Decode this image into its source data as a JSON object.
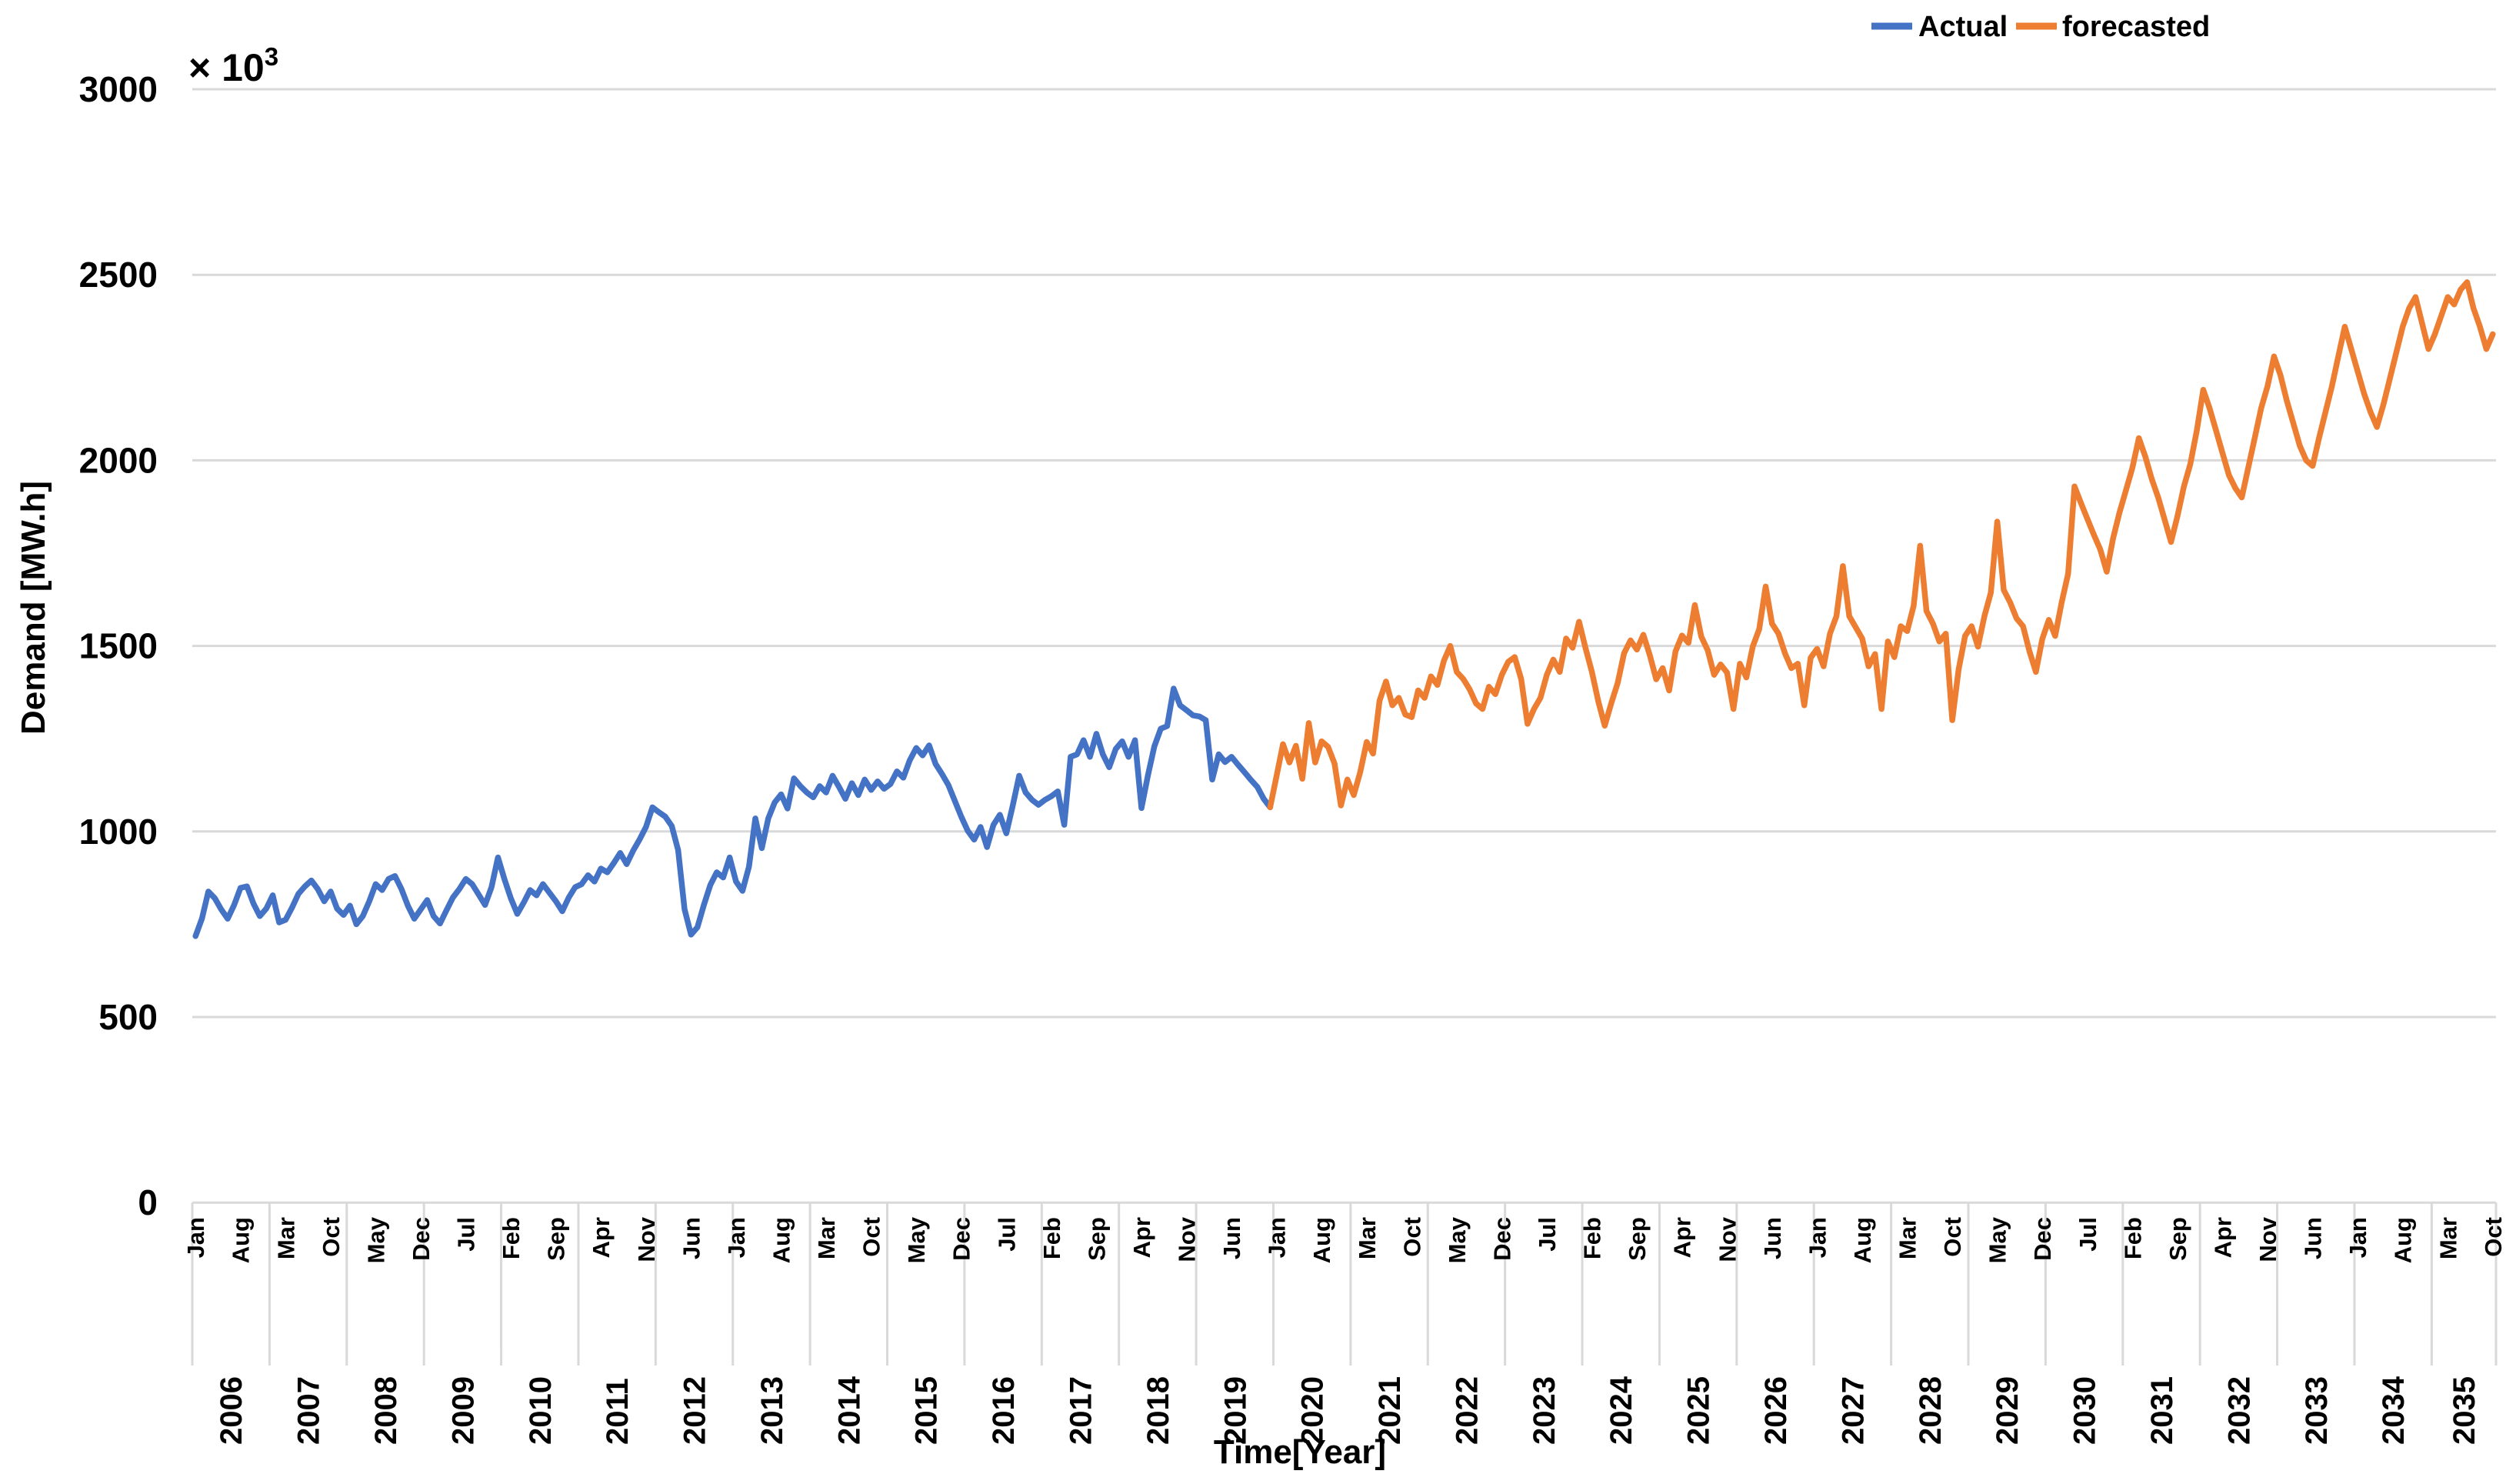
{
  "chart_data": {
    "type": "line",
    "title": "",
    "xlabel": "Time[Year]",
    "ylabel": "Demand [MW.h]",
    "y_multiplier_base": "× 10",
    "y_multiplier_exp": "3",
    "ylim": [
      0,
      3000
    ],
    "yticks": [
      0,
      500,
      1000,
      1500,
      2000,
      2500,
      3000
    ],
    "grid_on": true,
    "grid_color": "#D9D9D9",
    "axis_line_color": "#D9D9D9",
    "x_tick_interval_months": 7,
    "x_tick_labels": [
      "Jan",
      "Aug",
      "Mar",
      "Oct",
      "May",
      "Dec",
      "Jul",
      "Feb",
      "Sep",
      "Apr",
      "Nov",
      "Jun",
      "Jan",
      "Aug",
      "Mar",
      "Oct",
      "May",
      "Dec",
      "Jul",
      "Feb",
      "Sep",
      "Apr",
      "Nov",
      "Jun",
      "Jan",
      "Aug",
      "Mar",
      "Oct",
      "May",
      "Dec",
      "Jul",
      "Feb",
      "Sep",
      "Apr",
      "Nov",
      "Jun",
      "Jan",
      "Aug",
      "Mar",
      "Oct",
      "May",
      "Dec",
      "Jul",
      "Feb",
      "Sep",
      "Apr",
      "Nov",
      "Jun",
      "Jan",
      "Aug",
      "Mar",
      "Oct"
    ],
    "years": [
      "2006",
      "2007",
      "2008",
      "2009",
      "2010",
      "2011",
      "2012",
      "2013",
      "2014",
      "2015",
      "2016",
      "2017",
      "2018",
      "2019",
      "2020",
      "2021",
      "2022",
      "2023",
      "2024",
      "2025",
      "2026",
      "2027",
      "2028",
      "2029",
      "2030",
      "2031",
      "2032",
      "2033",
      "2034",
      "2035"
    ],
    "total_months": 358,
    "x_range": "Jan 2006 - Oct 2035",
    "legend": [
      {
        "name": "Actual",
        "color": "#4472C4"
      },
      {
        "name": "forecasted",
        "color": "#ED7D31"
      }
    ],
    "series": [
      {
        "name": "Actual",
        "color": "#4472C4",
        "start_month_index": 0,
        "start": "2006-01",
        "end": "2019-12",
        "values": [
          718,
          765,
          838,
          820,
          790,
          765,
          802,
          848,
          852,
          806,
          772,
          792,
          828,
          755,
          762,
          795,
          832,
          852,
          868,
          845,
          812,
          838,
          792,
          775,
          800,
          750,
          772,
          812,
          858,
          842,
          872,
          880,
          845,
          800,
          765,
          790,
          815,
          772,
          752,
          788,
          822,
          845,
          872,
          858,
          830,
          802,
          850,
          930,
          872,
          820,
          778,
          808,
          842,
          828,
          858,
          835,
          812,
          785,
          822,
          850,
          858,
          882,
          865,
          900,
          890,
          915,
          942,
          912,
          948,
          978,
          1012,
          1065,
          1052,
          1040,
          1015,
          950,
          790,
          722,
          742,
          802,
          856,
          890,
          876,
          930,
          865,
          840,
          905,
          1035,
          955,
          1035,
          1078,
          1100,
          1062,
          1143,
          1122,
          1105,
          1092,
          1122,
          1105,
          1150,
          1120,
          1088,
          1130,
          1098,
          1140,
          1112,
          1135,
          1115,
          1128,
          1162,
          1145,
          1192,
          1225,
          1205,
          1232,
          1182,
          1155,
          1125,
          1082,
          1040,
          1002,
          978,
          1012,
          958,
          1018,
          1045,
          995,
          1070,
          1150,
          1105,
          1085,
          1072,
          1085,
          1095,
          1108,
          1018,
          1201,
          1208,
          1246,
          1201,
          1263,
          1208,
          1173,
          1222,
          1243,
          1201,
          1246,
          1063,
          1150,
          1229,
          1277,
          1284,
          1385,
          1340,
          1327,
          1313,
          1310,
          1300,
          1140,
          1208,
          1187,
          1201,
          1180,
          1160,
          1139,
          1120,
          1088,
          1065
        ]
      },
      {
        "name": "forecasted",
        "color": "#ED7D31",
        "start_month_index": 167,
        "start": "2019-12",
        "end": "2035-10",
        "values": [
          1065,
          1150,
          1235,
          1186,
          1231,
          1142,
          1292,
          1186,
          1243,
          1228,
          1183,
          1070,
          1140,
          1098,
          1160,
          1241,
          1210,
          1352,
          1404,
          1340,
          1360,
          1315,
          1308,
          1380,
          1360,
          1418,
          1395,
          1460,
          1500,
          1430,
          1411,
          1383,
          1345,
          1330,
          1390,
          1370,
          1422,
          1457,
          1470,
          1411,
          1290,
          1330,
          1360,
          1422,
          1463,
          1430,
          1520,
          1495,
          1565,
          1495,
          1430,
          1350,
          1285,
          1345,
          1400,
          1480,
          1515,
          1490,
          1530,
          1475,
          1410,
          1440,
          1380,
          1485,
          1528,
          1508,
          1610,
          1525,
          1488,
          1422,
          1450,
          1428,
          1330,
          1452,
          1415,
          1498,
          1545,
          1660,
          1560,
          1533,
          1480,
          1440,
          1452,
          1340,
          1468,
          1492,
          1445,
          1533,
          1580,
          1715,
          1580,
          1550,
          1520,
          1445,
          1478,
          1330,
          1512,
          1470,
          1553,
          1540,
          1608,
          1770,
          1594,
          1560,
          1512,
          1533,
          1300,
          1437,
          1527,
          1553,
          1498,
          1580,
          1644,
          1835,
          1651,
          1617,
          1574,
          1553,
          1485,
          1430,
          1519,
          1570,
          1527,
          1617,
          1694,
          1930,
          1885,
          1842,
          1800,
          1760,
          1700,
          1790,
          1860,
          1920,
          1980,
          2060,
          2010,
          1950,
          1900,
          1840,
          1780,
          1850,
          1930,
          1990,
          2080,
          2190,
          2140,
          2080,
          2020,
          1960,
          1925,
          1900,
          1980,
          2060,
          2140,
          2200,
          2280,
          2230,
          2160,
          2100,
          2040,
          2000,
          1985,
          2060,
          2130,
          2200,
          2280,
          2360,
          2300,
          2240,
          2180,
          2130,
          2090,
          2150,
          2220,
          2290,
          2360,
          2410,
          2440,
          2370,
          2300,
          2340,
          2390,
          2440,
          2420,
          2460,
          2480,
          2410,
          2360,
          2300,
          2340
        ]
      }
    ]
  }
}
